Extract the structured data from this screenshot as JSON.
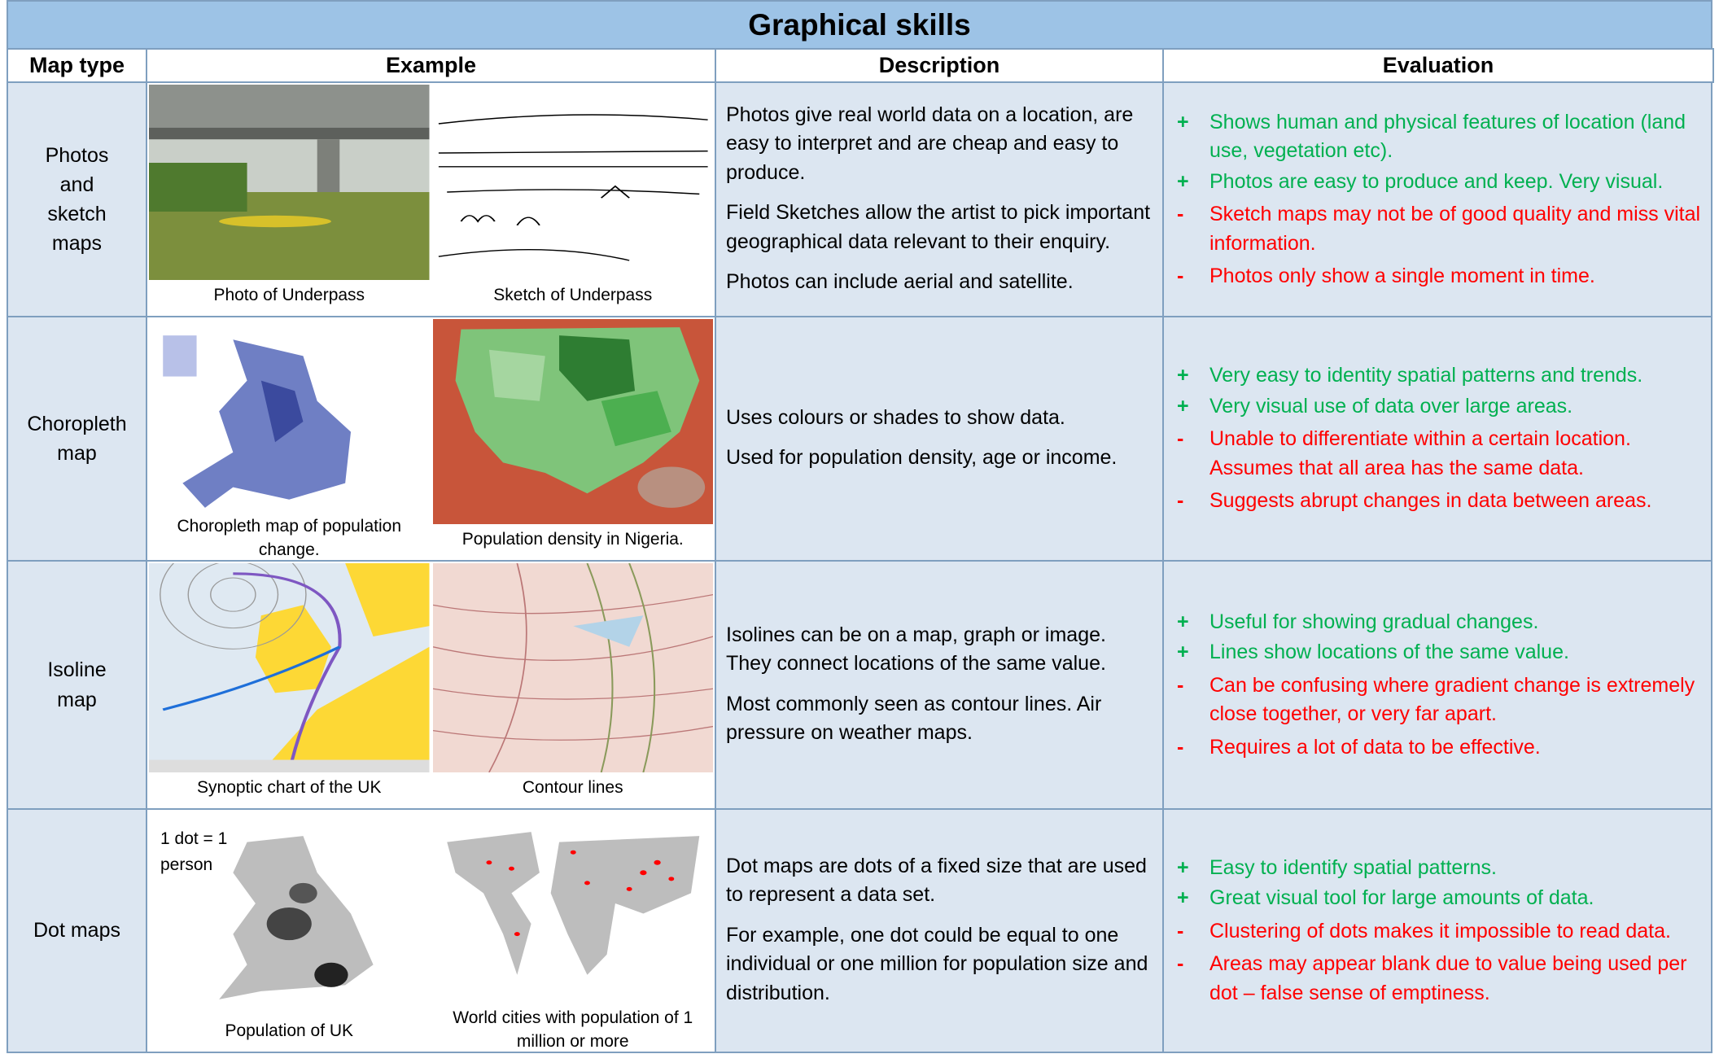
{
  "title": "Graphical skills",
  "headers": [
    "Map type",
    "Example",
    "Description",
    "Evaluation"
  ],
  "rows": [
    {
      "map_type": "Photos and sketch maps",
      "examples": [
        {
          "caption": "Photo of Underpass"
        },
        {
          "caption": "Sketch of Underpass"
        }
      ],
      "description": [
        "Photos give real world data on a location, are easy to interpret and are cheap and easy to produce.",
        "Field Sketches allow the artist to pick important geographical data relevant to their enquiry.",
        "Photos can include aerial and satellite."
      ],
      "evaluation": [
        {
          "sign": "+",
          "text": "Shows human and physical features of location (land use, vegetation etc)."
        },
        {
          "sign": "+",
          "text": "Photos are easy to produce and keep. Very visual."
        },
        {
          "sign": "-",
          "text": "Sketch maps may not be of good quality and miss vital information."
        },
        {
          "sign": "-",
          "text": "Photos only show a single moment in time."
        }
      ]
    },
    {
      "map_type": "Choropleth map",
      "examples": [
        {
          "caption": "Choropleth map of population change."
        },
        {
          "caption": "Population density in Nigeria."
        }
      ],
      "description": [
        "Uses colours or shades to show data.",
        "Used for population density, age or income."
      ],
      "evaluation": [
        {
          "sign": "+",
          "text": "Very easy to identity spatial patterns and trends."
        },
        {
          "sign": "+",
          "text": "Very visual use of data over large areas."
        },
        {
          "sign": "-",
          "text": "Unable to differentiate within a certain location. Assumes that all area has the same data."
        },
        {
          "sign": "-",
          "text": "Suggests abrupt changes in data between areas."
        }
      ]
    },
    {
      "map_type": "Isoline map",
      "examples": [
        {
          "caption": "Synoptic chart of the UK"
        },
        {
          "caption": "Contour lines"
        }
      ],
      "description": [
        "Isolines can be on a map, graph or image. They connect locations of the same value.",
        "Most commonly seen as contour lines. Air pressure on weather maps."
      ],
      "evaluation": [
        {
          "sign": "+",
          "text": "Useful for showing gradual changes."
        },
        {
          "sign": "+",
          "text": "Lines show locations of the same value."
        },
        {
          "sign": "-",
          "text": "Can be confusing where gradient change is extremely close together, or very far apart."
        },
        {
          "sign": "-",
          "text": "Requires a lot of data to be effective."
        }
      ]
    },
    {
      "map_type": "Dot maps",
      "examples": [
        {
          "caption": "Population of UK",
          "note": "1 dot = 1 person"
        },
        {
          "caption": "World cities with population of 1 million or more"
        }
      ],
      "description": [
        "Dot maps are dots of a fixed size that are used to represent a data set.",
        "For example, one dot could be equal to one individual or one million for population size and distribution."
      ],
      "evaluation": [
        {
          "sign": "+",
          "text": "Easy to identify spatial patterns."
        },
        {
          "sign": "+",
          "text": "Great visual tool for large amounts of data."
        },
        {
          "sign": "-",
          "text": "Clustering of dots makes it impossible to read data."
        },
        {
          "sign": "-",
          "text": "Areas may appear blank due to value being used per dot – false sense of emptiness."
        }
      ]
    }
  ]
}
